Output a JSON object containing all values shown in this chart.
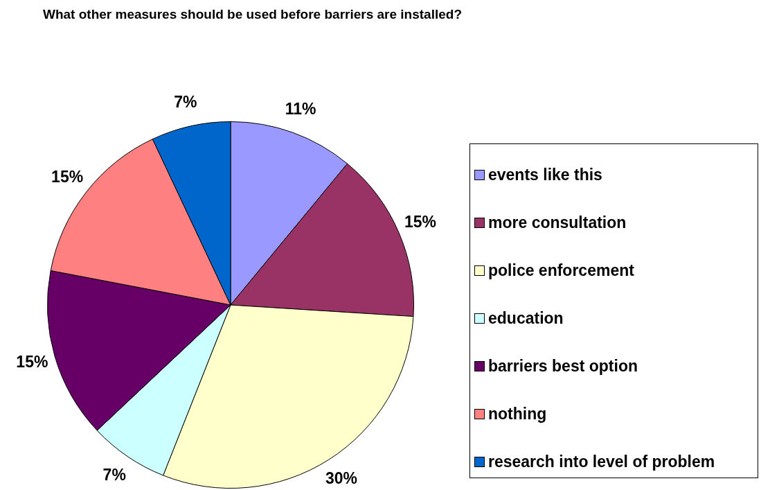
{
  "chart_data": {
    "type": "pie",
    "title": "What other measures should be used before barriers are installed?",
    "categories": [
      "events like this",
      "more consultation",
      "police enforcement",
      "education",
      "barriers best option",
      "nothing",
      "research into level of problem"
    ],
    "values": [
      11,
      15,
      30,
      7,
      15,
      15,
      7
    ],
    "colors": [
      "#9999ff",
      "#993366",
      "#ffffcc",
      "#ccffff",
      "#660066",
      "#ff8080",
      "#0066cc"
    ],
    "value_labels": [
      "11%",
      "15%",
      "30%",
      "7%",
      "15%",
      "15%",
      "7%"
    ],
    "legend": "right"
  }
}
